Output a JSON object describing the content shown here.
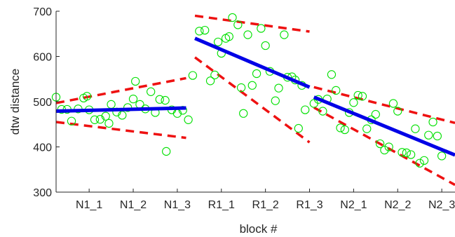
{
  "chart_data": {
    "type": "scatter",
    "title": "",
    "xlabel": "block #",
    "ylabel": "dtw distance",
    "ylim": [
      300,
      700
    ],
    "yticks": [
      300,
      400,
      500,
      600,
      700
    ],
    "xlim": [
      0.5,
      18.6
    ],
    "xticks": [
      {
        "x": 2,
        "label": "N1_1"
      },
      {
        "x": 4,
        "label": "N1_2"
      },
      {
        "x": 6,
        "label": "N1_3"
      },
      {
        "x": 8,
        "label": "R1_1"
      },
      {
        "x": 10,
        "label": "R1_2"
      },
      {
        "x": 12,
        "label": "R1_3"
      },
      {
        "x": 14,
        "label": "N2_1"
      },
      {
        "x": 16,
        "label": "N2_2"
      },
      {
        "x": 18,
        "label": "N2_3"
      }
    ],
    "grid": false,
    "colors": {
      "points": "#00e000",
      "fit": "#0000e6",
      "ci": "#ee1111",
      "axis": "#262626"
    },
    "points": [
      [
        0.5,
        510
      ],
      [
        0.75,
        483
      ],
      [
        1.0,
        483
      ],
      [
        1.2,
        457
      ],
      [
        1.5,
        484
      ],
      [
        1.75,
        508
      ],
      [
        1.9,
        512
      ],
      [
        2.0,
        482
      ],
      [
        2.25,
        460
      ],
      [
        2.5,
        461
      ],
      [
        2.75,
        468
      ],
      [
        2.9,
        452
      ],
      [
        3.0,
        494
      ],
      [
        3.25,
        477
      ],
      [
        3.5,
        470
      ],
      [
        3.75,
        487
      ],
      [
        4.0,
        506
      ],
      [
        4.1,
        545
      ],
      [
        4.3,
        494
      ],
      [
        4.55,
        484
      ],
      [
        4.8,
        522
      ],
      [
        5.0,
        476
      ],
      [
        5.2,
        505
      ],
      [
        5.45,
        503
      ],
      [
        5.5,
        390
      ],
      [
        5.75,
        482
      ],
      [
        6.0,
        474
      ],
      [
        6.25,
        481
      ],
      [
        6.5,
        460
      ],
      [
        6.7,
        558
      ],
      [
        7.0,
        656
      ],
      [
        7.25,
        658
      ],
      [
        7.5,
        546
      ],
      [
        7.7,
        559
      ],
      [
        7.85,
        632
      ],
      [
        8.0,
        607
      ],
      [
        8.2,
        640
      ],
      [
        8.35,
        644
      ],
      [
        8.5,
        686
      ],
      [
        8.75,
        670
      ],
      [
        8.9,
        531
      ],
      [
        9.0,
        474
      ],
      [
        9.2,
        648
      ],
      [
        9.4,
        536
      ],
      [
        9.6,
        562
      ],
      [
        9.8,
        662
      ],
      [
        10.0,
        624
      ],
      [
        10.2,
        567
      ],
      [
        10.45,
        502
      ],
      [
        10.6,
        530
      ],
      [
        10.85,
        648
      ],
      [
        11.0,
        554
      ],
      [
        11.2,
        555
      ],
      [
        11.35,
        548
      ],
      [
        11.5,
        441
      ],
      [
        11.65,
        536
      ],
      [
        11.8,
        482
      ],
      [
        12.2,
        496
      ],
      [
        12.4,
        505
      ],
      [
        12.6,
        479
      ],
      [
        12.8,
        506
      ],
      [
        13.0,
        560
      ],
      [
        13.2,
        525
      ],
      [
        13.4,
        442
      ],
      [
        13.6,
        438
      ],
      [
        13.8,
        476
      ],
      [
        14.0,
        498
      ],
      [
        14.2,
        514
      ],
      [
        14.4,
        512
      ],
      [
        14.6,
        440
      ],
      [
        14.8,
        460
      ],
      [
        15.0,
        472
      ],
      [
        15.2,
        407
      ],
      [
        15.4,
        393
      ],
      [
        15.6,
        400
      ],
      [
        15.8,
        496
      ],
      [
        16.0,
        479
      ],
      [
        16.2,
        388
      ],
      [
        16.4,
        387
      ],
      [
        16.6,
        383
      ],
      [
        16.8,
        440
      ],
      [
        17.0,
        364
      ],
      [
        17.2,
        370
      ],
      [
        17.4,
        426
      ],
      [
        17.6,
        455
      ],
      [
        17.8,
        424
      ],
      [
        18.0,
        380
      ]
    ],
    "fit_lines": [
      {
        "x": [
          0.5,
          6.4
        ],
        "y": [
          479,
          486
        ]
      },
      {
        "x": [
          6.8,
          12.0
        ],
        "y": [
          640,
          532
        ]
      },
      {
        "x": [
          12.2,
          18.6
        ],
        "y": [
          510,
          382
        ]
      }
    ],
    "ci_lines": [
      {
        "x": [
          0.5,
          6.4
        ],
        "y": [
          497,
          552
        ]
      },
      {
        "x": [
          0.5,
          6.4
        ],
        "y": [
          455,
          420
        ]
      },
      {
        "x": [
          6.8,
          12.0
        ],
        "y": [
          690,
          655
        ]
      },
      {
        "x": [
          6.8,
          12.0
        ],
        "y": [
          598,
          410
        ]
      },
      {
        "x": [
          12.2,
          18.6
        ],
        "y": [
          532,
          453
        ]
      },
      {
        "x": [
          12.2,
          18.6
        ],
        "y": [
          487,
          316
        ]
      }
    ]
  }
}
